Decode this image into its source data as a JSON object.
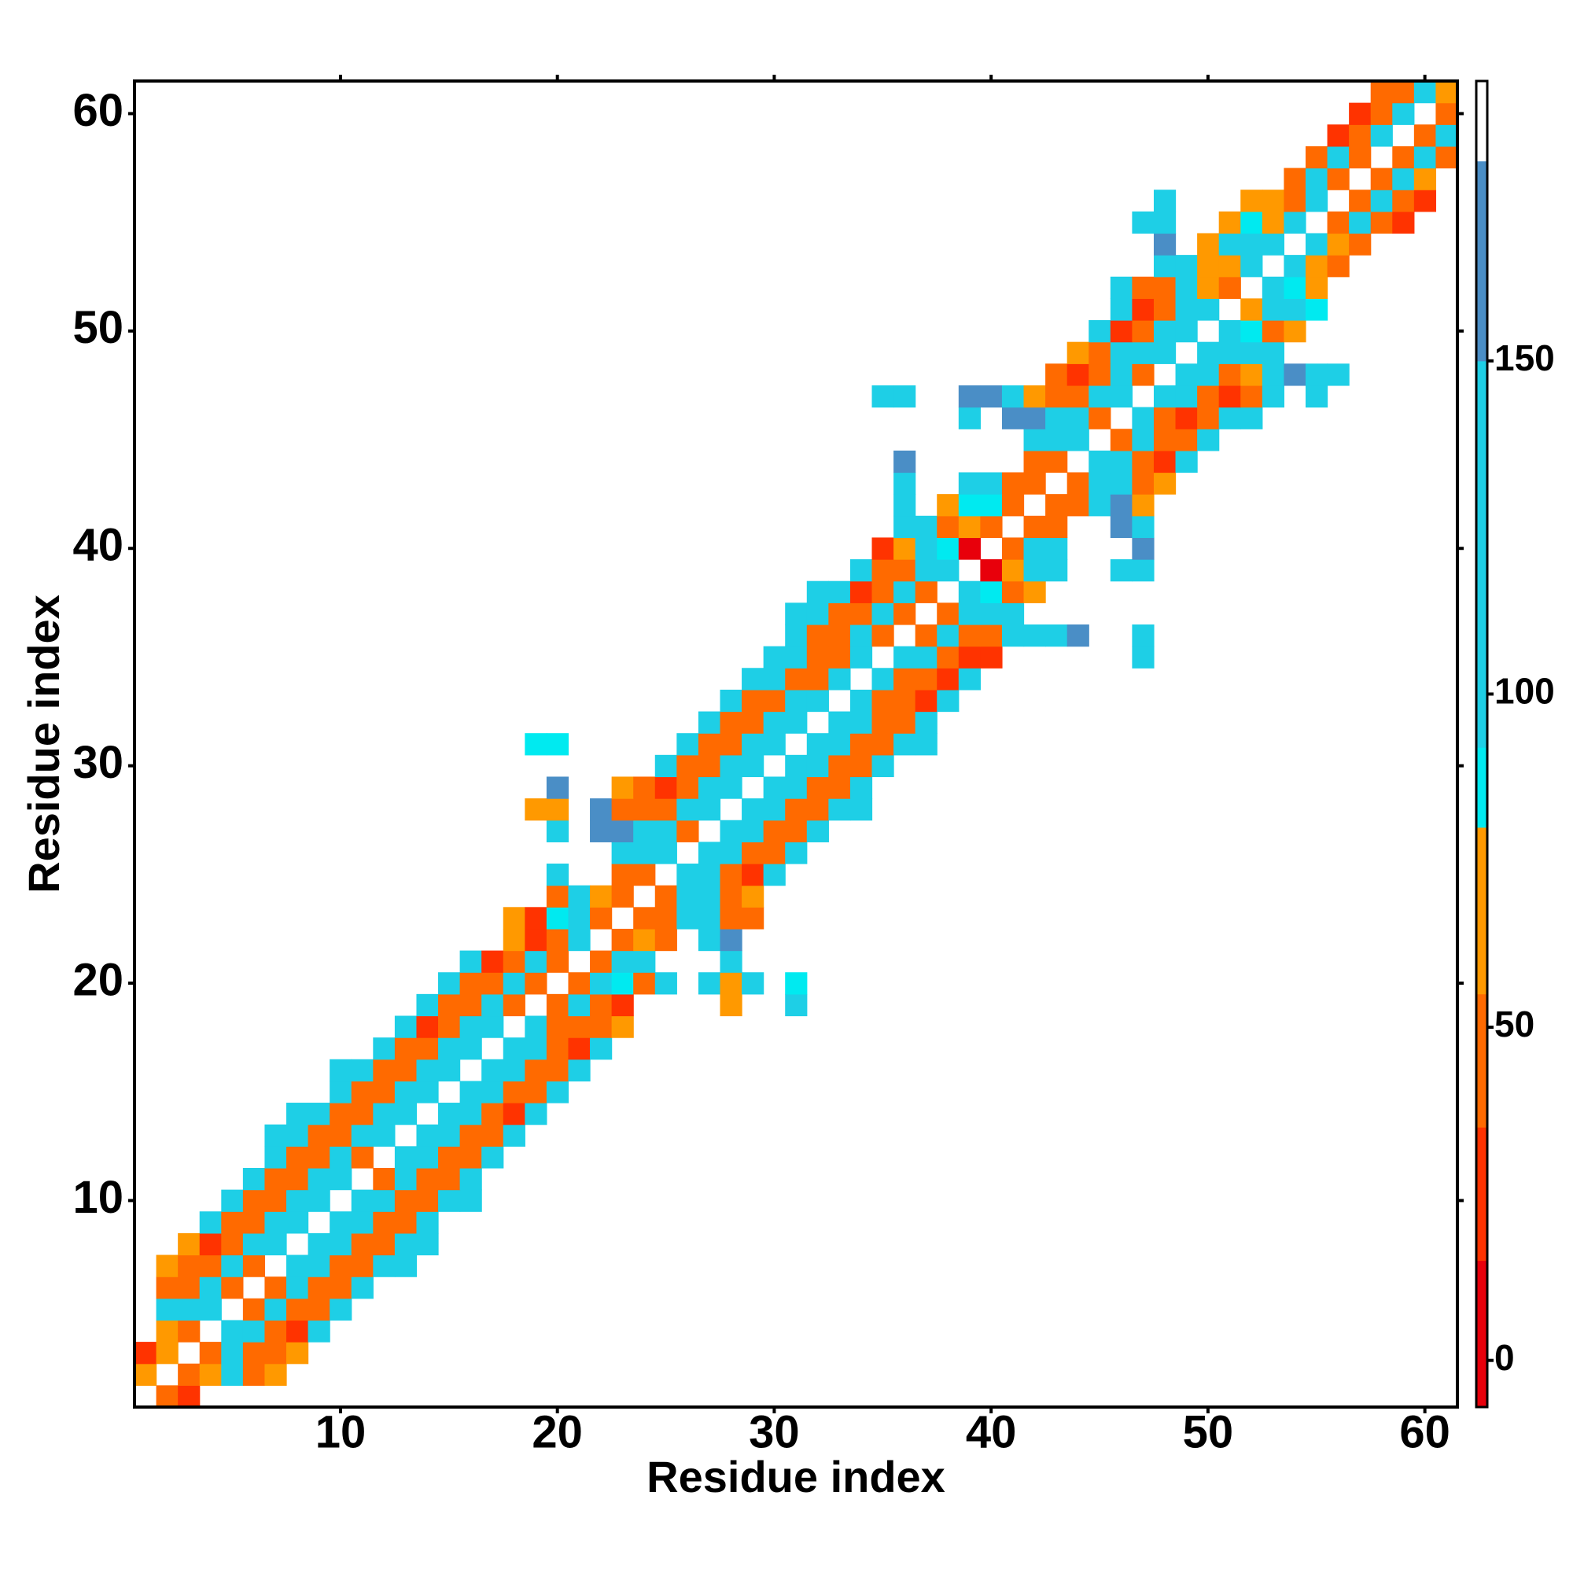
{
  "chart_data": {
    "type": "heatmap",
    "xlabel": "Residue index",
    "ylabel": "Residue index",
    "xlim": [
      0.5,
      61.5
    ],
    "ylim": [
      0.5,
      61.5
    ],
    "xticks": [
      10,
      20,
      30,
      40,
      50,
      60
    ],
    "yticks": [
      10,
      20,
      30,
      40,
      50,
      60
    ],
    "colorbar": {
      "lim": [
        -7,
        192
      ],
      "ticks": [
        0,
        50,
        100,
        150
      ],
      "stops": [
        {
          "value": -7,
          "color": "#e8000b"
        },
        {
          "value": 15,
          "color": "#ff3300"
        },
        {
          "value": 35,
          "color": "#ff6a00"
        },
        {
          "value": 55,
          "color": "#ff9900"
        },
        {
          "value": 80,
          "color": "#00eaf0"
        },
        {
          "value": 92,
          "color": "#1ecfe6"
        },
        {
          "value": 150,
          "color": "#4a8ec6"
        },
        {
          "value": 180,
          "color": "#ffffff"
        }
      ]
    },
    "rows": [
      {
        "y": 1,
        "x_start": 2,
        "values": [
          45,
          25
        ]
      },
      {
        "y": 2,
        "x_start": 1,
        "values": [
          70,
          null,
          45,
          70,
          120,
          45,
          70
        ]
      },
      {
        "y": 3,
        "x_start": 1,
        "values": [
          25,
          70,
          null,
          45,
          120,
          45,
          45,
          70
        ]
      },
      {
        "y": 4,
        "x_start": 2,
        "values": [
          70,
          45,
          null,
          120,
          120,
          45,
          25,
          120
        ]
      },
      {
        "y": 5,
        "x_start": 2,
        "values": [
          120,
          120,
          120,
          null,
          45,
          120,
          45,
          45,
          120
        ]
      },
      {
        "y": 6,
        "x_start": 2,
        "values": [
          45,
          45,
          120,
          45,
          null,
          45,
          120,
          45,
          45,
          120
        ]
      },
      {
        "y": 7,
        "x_start": 2,
        "values": [
          70,
          45,
          45,
          120,
          45,
          null,
          120,
          120,
          45,
          45,
          120,
          120
        ]
      },
      {
        "y": 8,
        "x_start": 3,
        "values": [
          70,
          25,
          45,
          120,
          120,
          null,
          120,
          120,
          45,
          45,
          120,
          120
        ]
      },
      {
        "y": 9,
        "x_start": 4,
        "values": [
          120,
          45,
          45,
          120,
          120,
          null,
          120,
          120,
          45,
          45,
          120
        ]
      },
      {
        "y": 10,
        "x_start": 5,
        "values": [
          120,
          45,
          45,
          120,
          120,
          null,
          120,
          120,
          45,
          45,
          120,
          120
        ]
      },
      {
        "y": 11,
        "x_start": 6,
        "values": [
          120,
          45,
          45,
          120,
          120,
          null,
          45,
          120,
          45,
          45,
          120
        ]
      },
      {
        "y": 12,
        "x_start": 7,
        "values": [
          120,
          45,
          45,
          120,
          45,
          null,
          120,
          120,
          45,
          45,
          120
        ]
      },
      {
        "y": 13,
        "x_start": 7,
        "values": [
          120,
          120,
          45,
          45,
          120,
          120,
          null,
          120,
          120,
          45,
          45,
          120
        ]
      },
      {
        "y": 14,
        "x_start": 8,
        "values": [
          120,
          120,
          45,
          45,
          120,
          120,
          null,
          120,
          120,
          45,
          25,
          120
        ]
      },
      {
        "y": 15,
        "x_start": 10,
        "values": [
          120,
          45,
          45,
          120,
          120,
          null,
          120,
          120,
          45,
          45,
          120
        ]
      },
      {
        "y": 16,
        "x_start": 10,
        "values": [
          120,
          120,
          45,
          45,
          120,
          120,
          null,
          120,
          120,
          45,
          45,
          120
        ]
      },
      {
        "y": 17,
        "x_start": 12,
        "values": [
          120,
          45,
          45,
          120,
          120,
          null,
          120,
          120,
          45,
          25,
          120
        ]
      },
      {
        "y": 18,
        "x_start": 13,
        "values": [
          120,
          25,
          45,
          120,
          120,
          null,
          120,
          45,
          45,
          45,
          70
        ]
      },
      {
        "y": 19,
        "x_start": 14,
        "values": [
          120,
          45,
          45,
          120,
          45,
          null,
          45,
          120,
          45,
          25,
          null,
          null,
          null,
          null,
          70,
          null,
          null,
          120
        ]
      },
      {
        "y": 20,
        "x_start": 15,
        "values": [
          120,
          45,
          45,
          120,
          45,
          null,
          45,
          120,
          86,
          45,
          120,
          null,
          120,
          70,
          120,
          null,
          86
        ]
      },
      {
        "y": 21,
        "x_start": 16,
        "values": [
          120,
          25,
          45,
          120,
          45,
          null,
          45,
          120,
          120,
          null,
          null,
          null,
          120
        ]
      },
      {
        "y": 22,
        "x_start": 18,
        "values": [
          70,
          25,
          45,
          120,
          null,
          45,
          70,
          45,
          null,
          120,
          160
        ]
      },
      {
        "y": 23,
        "x_start": 18,
        "values": [
          70,
          25,
          86,
          120,
          45,
          null,
          45,
          45,
          120,
          120,
          45,
          45
        ]
      },
      {
        "y": 24,
        "x_start": 20,
        "values": [
          45,
          120,
          70,
          45,
          null,
          45,
          120,
          120,
          45,
          70
        ]
      },
      {
        "y": 25,
        "x_start": 20,
        "values": [
          120,
          null,
          null,
          45,
          45,
          null,
          120,
          120,
          45,
          25,
          120
        ]
      },
      {
        "y": 26,
        "x_start": 23,
        "values": [
          120,
          120,
          120,
          null,
          120,
          120,
          45,
          45,
          120
        ]
      },
      {
        "y": 27,
        "x_start": 20,
        "values": [
          120,
          null,
          160,
          160,
          120,
          120,
          45,
          null,
          120,
          120,
          45,
          45,
          120
        ]
      },
      {
        "y": 28,
        "x_start": 19,
        "values": [
          70,
          70,
          null,
          160,
          45,
          45,
          45,
          120,
          120,
          null,
          120,
          120,
          45,
          45,
          120,
          120
        ]
      },
      {
        "y": 29,
        "x_start": 20,
        "values": [
          160,
          null,
          null,
          70,
          45,
          25,
          45,
          120,
          120,
          null,
          120,
          120,
          45,
          45,
          120
        ]
      },
      {
        "y": 30,
        "x_start": 25,
        "values": [
          120,
          45,
          45,
          120,
          120,
          null,
          120,
          120,
          45,
          45,
          120
        ]
      },
      {
        "y": 31,
        "x_start": 19,
        "values": [
          86,
          86,
          null,
          null,
          null,
          null,
          null,
          120,
          45,
          45,
          120,
          120,
          null,
          120,
          120,
          45,
          45,
          120,
          120
        ]
      },
      {
        "y": 32,
        "x_start": 27,
        "values": [
          120,
          45,
          45,
          120,
          120,
          null,
          120,
          120,
          45,
          45,
          120
        ]
      },
      {
        "y": 33,
        "x_start": 28,
        "values": [
          120,
          45,
          45,
          120,
          120,
          null,
          120,
          45,
          45,
          25,
          120
        ]
      },
      {
        "y": 34,
        "x_start": 29,
        "values": [
          120,
          120,
          45,
          45,
          120,
          null,
          120,
          45,
          45,
          25,
          120
        ]
      },
      {
        "y": 35,
        "x_start": 30,
        "values": [
          120,
          120,
          45,
          45,
          120,
          null,
          120,
          120,
          45,
          25,
          25,
          null,
          null,
          null,
          null,
          null,
          null,
          120
        ]
      },
      {
        "y": 36,
        "x_start": 31,
        "values": [
          120,
          45,
          45,
          120,
          45,
          null,
          45,
          120,
          45,
          45,
          120,
          120,
          120,
          160,
          null,
          null,
          120
        ]
      },
      {
        "y": 37,
        "x_start": 31,
        "values": [
          120,
          120,
          45,
          45,
          120,
          45,
          null,
          45,
          120,
          120,
          120
        ]
      },
      {
        "y": 38,
        "x_start": 32,
        "values": [
          120,
          120,
          25,
          45,
          120,
          45,
          null,
          120,
          86,
          45,
          70
        ]
      },
      {
        "y": 39,
        "x_start": 34,
        "values": [
          120,
          45,
          45,
          120,
          120,
          null,
          5,
          70,
          120,
          120,
          null,
          null,
          120,
          120
        ]
      },
      {
        "y": 40,
        "x_start": 35,
        "values": [
          25,
          70,
          120,
          86,
          5,
          null,
          45,
          120,
          120,
          null,
          null,
          null,
          160
        ]
      },
      {
        "y": 41,
        "x_start": 36,
        "values": [
          120,
          120,
          45,
          70,
          45,
          null,
          45,
          45,
          null,
          null,
          160,
          120
        ]
      },
      {
        "y": 42,
        "x_start": 36,
        "values": [
          120,
          null,
          70,
          86,
          86,
          45,
          null,
          45,
          45,
          120,
          160,
          70
        ]
      },
      {
        "y": 43,
        "x_start": 36,
        "values": [
          120,
          null,
          null,
          120,
          120,
          45,
          45,
          null,
          45,
          120,
          120,
          45,
          70
        ]
      },
      {
        "y": 44,
        "x_start": 36,
        "values": [
          160,
          null,
          null,
          null,
          null,
          null,
          45,
          45,
          null,
          120,
          120,
          45,
          25,
          120
        ]
      },
      {
        "y": 45,
        "x_start": 42,
        "values": [
          120,
          120,
          120,
          null,
          45,
          120,
          45,
          45,
          120
        ]
      },
      {
        "y": 46,
        "x_start": 39,
        "values": [
          120,
          null,
          160,
          160,
          120,
          120,
          45,
          null,
          120,
          45,
          25,
          45,
          120,
          120
        ]
      },
      {
        "y": 47,
        "x_start": 35,
        "values": [
          120,
          120,
          null,
          null,
          160,
          160,
          120,
          70,
          45,
          45,
          120,
          120,
          null,
          120,
          120,
          45,
          25,
          45,
          120,
          null,
          120
        ]
      },
      {
        "y": 48,
        "x_start": 43,
        "values": [
          45,
          25,
          45,
          120,
          45,
          null,
          120,
          120,
          45,
          70,
          120,
          160,
          120,
          120
        ]
      },
      {
        "y": 49,
        "x_start": 44,
        "values": [
          70,
          45,
          120,
          120,
          120,
          null,
          120,
          120,
          120,
          120
        ]
      },
      {
        "y": 50,
        "x_start": 45,
        "values": [
          120,
          25,
          45,
          120,
          120,
          null,
          120,
          86,
          45,
          70
        ]
      },
      {
        "y": 51,
        "x_start": 46,
        "values": [
          120,
          25,
          45,
          120,
          120,
          null,
          70,
          120,
          120,
          86
        ]
      },
      {
        "y": 52,
        "x_start": 46,
        "values": [
          120,
          45,
          45,
          120,
          70,
          45,
          null,
          120,
          86,
          70
        ]
      },
      {
        "y": 53,
        "x_start": 48,
        "values": [
          120,
          120,
          70,
          70,
          120,
          null,
          120,
          70,
          45
        ]
      },
      {
        "y": 54,
        "x_start": 48,
        "values": [
          160,
          null,
          70,
          120,
          120,
          120,
          null,
          120,
          70,
          45
        ]
      },
      {
        "y": 55,
        "x_start": 47,
        "values": [
          120,
          120,
          null,
          null,
          70,
          86,
          70,
          120,
          null,
          45,
          120,
          45,
          25
        ]
      },
      {
        "y": 56,
        "x_start": 48,
        "values": [
          120,
          null,
          null,
          null,
          70,
          70,
          45,
          120,
          null,
          45,
          120,
          45,
          25
        ]
      },
      {
        "y": 57,
        "x_start": 54,
        "values": [
          45,
          120,
          45,
          null,
          45,
          120,
          70
        ]
      },
      {
        "y": 58,
        "x_start": 55,
        "values": [
          45,
          120,
          45,
          null,
          45,
          120,
          45
        ]
      },
      {
        "y": 59,
        "x_start": 56,
        "values": [
          25,
          45,
          120,
          null,
          45,
          120
        ]
      },
      {
        "y": 60,
        "x_start": 57,
        "values": [
          25,
          45,
          120,
          null,
          45
        ]
      },
      {
        "y": 61,
        "x_start": 58,
        "values": [
          45,
          45,
          120,
          70
        ]
      }
    ]
  }
}
